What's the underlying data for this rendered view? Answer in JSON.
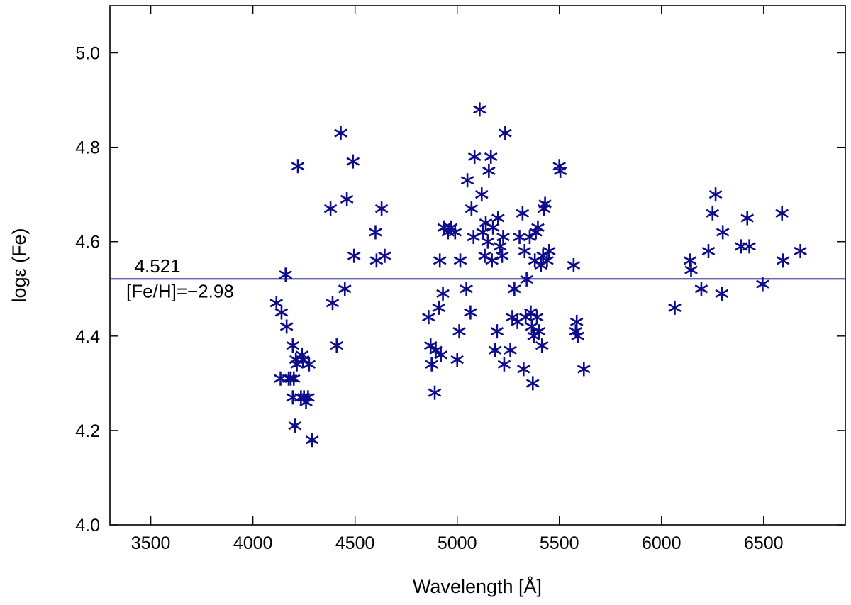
{
  "chart_data": {
    "type": "scatter",
    "marker": "asterisk",
    "color": "#0b0b8c",
    "xlabel": "Wavelength [Å]",
    "ylabel": "logε (Fe)",
    "xlim": [
      3300,
      6900
    ],
    "ylim": [
      4.0,
      5.1
    ],
    "xticks": [
      3500,
      4000,
      4500,
      5000,
      5500,
      6000,
      6500
    ],
    "xtick_labels": [
      "3500",
      "4000",
      "4500",
      "5000",
      "5500",
      "6000",
      "6500"
    ],
    "yticks": [
      4.0,
      4.2,
      4.4,
      4.6,
      4.8,
      5.0
    ],
    "ytick_labels": [
      "4.0",
      "4.2",
      "4.4",
      "4.6",
      "4.8",
      "5.0"
    ],
    "grid": false,
    "hline": {
      "y": 4.521,
      "color": "#0b0b8c"
    },
    "annotations": [
      {
        "text": "4.521",
        "x": 3420,
        "y": 4.535
      },
      {
        "text": "[Fe/H]=−2.98",
        "x": 3380,
        "y": 4.482
      }
    ],
    "points": [
      [
        4115,
        4.47
      ],
      [
        4135,
        4.31
      ],
      [
        4140,
        4.45
      ],
      [
        4160,
        4.53
      ],
      [
        4165,
        4.42
      ],
      [
        4175,
        4.31
      ],
      [
        4185,
        4.31
      ],
      [
        4195,
        4.38
      ],
      [
        4195,
        4.27
      ],
      [
        4200,
        4.31
      ],
      [
        4205,
        4.21
      ],
      [
        4210,
        4.35
      ],
      [
        4215,
        4.34
      ],
      [
        4220,
        4.76
      ],
      [
        4235,
        4.27
      ],
      [
        4240,
        4.36
      ],
      [
        4245,
        4.35
      ],
      [
        4250,
        4.27
      ],
      [
        4260,
        4.26
      ],
      [
        4270,
        4.27
      ],
      [
        4275,
        4.34
      ],
      [
        4290,
        4.18
      ],
      [
        4380,
        4.67
      ],
      [
        4390,
        4.47
      ],
      [
        4410,
        4.38
      ],
      [
        4430,
        4.83
      ],
      [
        4450,
        4.5
      ],
      [
        4460,
        4.69
      ],
      [
        4490,
        4.77
      ],
      [
        4495,
        4.57
      ],
      [
        4600,
        4.62
      ],
      [
        4605,
        4.56
      ],
      [
        4630,
        4.67
      ],
      [
        4645,
        4.57
      ],
      [
        4860,
        4.44
      ],
      [
        4870,
        4.38
      ],
      [
        4875,
        4.34
      ],
      [
        4890,
        4.28
      ],
      [
        4895,
        4.37
      ],
      [
        4910,
        4.46
      ],
      [
        4915,
        4.56
      ],
      [
        4920,
        4.36
      ],
      [
        4930,
        4.49
      ],
      [
        4935,
        4.63
      ],
      [
        4955,
        4.62
      ],
      [
        4970,
        4.63
      ],
      [
        4990,
        4.62
      ],
      [
        5000,
        4.35
      ],
      [
        5010,
        4.41
      ],
      [
        5015,
        4.56
      ],
      [
        5045,
        4.5
      ],
      [
        5050,
        4.73
      ],
      [
        5065,
        4.45
      ],
      [
        5070,
        4.67
      ],
      [
        5080,
        4.61
      ],
      [
        5085,
        4.78
      ],
      [
        5110,
        4.88
      ],
      [
        5120,
        4.7
      ],
      [
        5125,
        4.62
      ],
      [
        5135,
        4.57
      ],
      [
        5140,
        4.64
      ],
      [
        5150,
        4.6
      ],
      [
        5155,
        4.75
      ],
      [
        5165,
        4.78
      ],
      [
        5170,
        4.56
      ],
      [
        5175,
        4.63
      ],
      [
        5185,
        4.37
      ],
      [
        5195,
        4.41
      ],
      [
        5200,
        4.65
      ],
      [
        5210,
        4.59
      ],
      [
        5220,
        4.57
      ],
      [
        5225,
        4.61
      ],
      [
        5230,
        4.34
      ],
      [
        5235,
        4.83
      ],
      [
        5260,
        4.37
      ],
      [
        5270,
        4.44
      ],
      [
        5280,
        4.5
      ],
      [
        5295,
        4.43
      ],
      [
        5305,
        4.61
      ],
      [
        5320,
        4.66
      ],
      [
        5325,
        4.33
      ],
      [
        5330,
        4.58
      ],
      [
        5335,
        4.44
      ],
      [
        5340,
        4.52
      ],
      [
        5355,
        4.61
      ],
      [
        5360,
        4.45
      ],
      [
        5365,
        4.42
      ],
      [
        5370,
        4.3
      ],
      [
        5375,
        4.4
      ],
      [
        5380,
        4.56
      ],
      [
        5385,
        4.62
      ],
      [
        5390,
        4.44
      ],
      [
        5395,
        4.63
      ],
      [
        5400,
        4.41
      ],
      [
        5410,
        4.55
      ],
      [
        5415,
        4.38
      ],
      [
        5420,
        4.57
      ],
      [
        5425,
        4.67
      ],
      [
        5430,
        4.68
      ],
      [
        5440,
        4.56
      ],
      [
        5450,
        4.58
      ],
      [
        5500,
        4.76
      ],
      [
        5505,
        4.75
      ],
      [
        5570,
        4.55
      ],
      [
        5580,
        4.41
      ],
      [
        5585,
        4.43
      ],
      [
        5590,
        4.4
      ],
      [
        5620,
        4.33
      ],
      [
        6065,
        4.46
      ],
      [
        6140,
        4.56
      ],
      [
        6145,
        4.54
      ],
      [
        6195,
        4.5
      ],
      [
        6230,
        4.58
      ],
      [
        6250,
        4.66
      ],
      [
        6265,
        4.7
      ],
      [
        6295,
        4.49
      ],
      [
        6300,
        4.62
      ],
      [
        6390,
        4.59
      ],
      [
        6420,
        4.65
      ],
      [
        6430,
        4.59
      ],
      [
        6495,
        4.51
      ],
      [
        6590,
        4.66
      ],
      [
        6595,
        4.56
      ],
      [
        6680,
        4.58
      ]
    ]
  }
}
